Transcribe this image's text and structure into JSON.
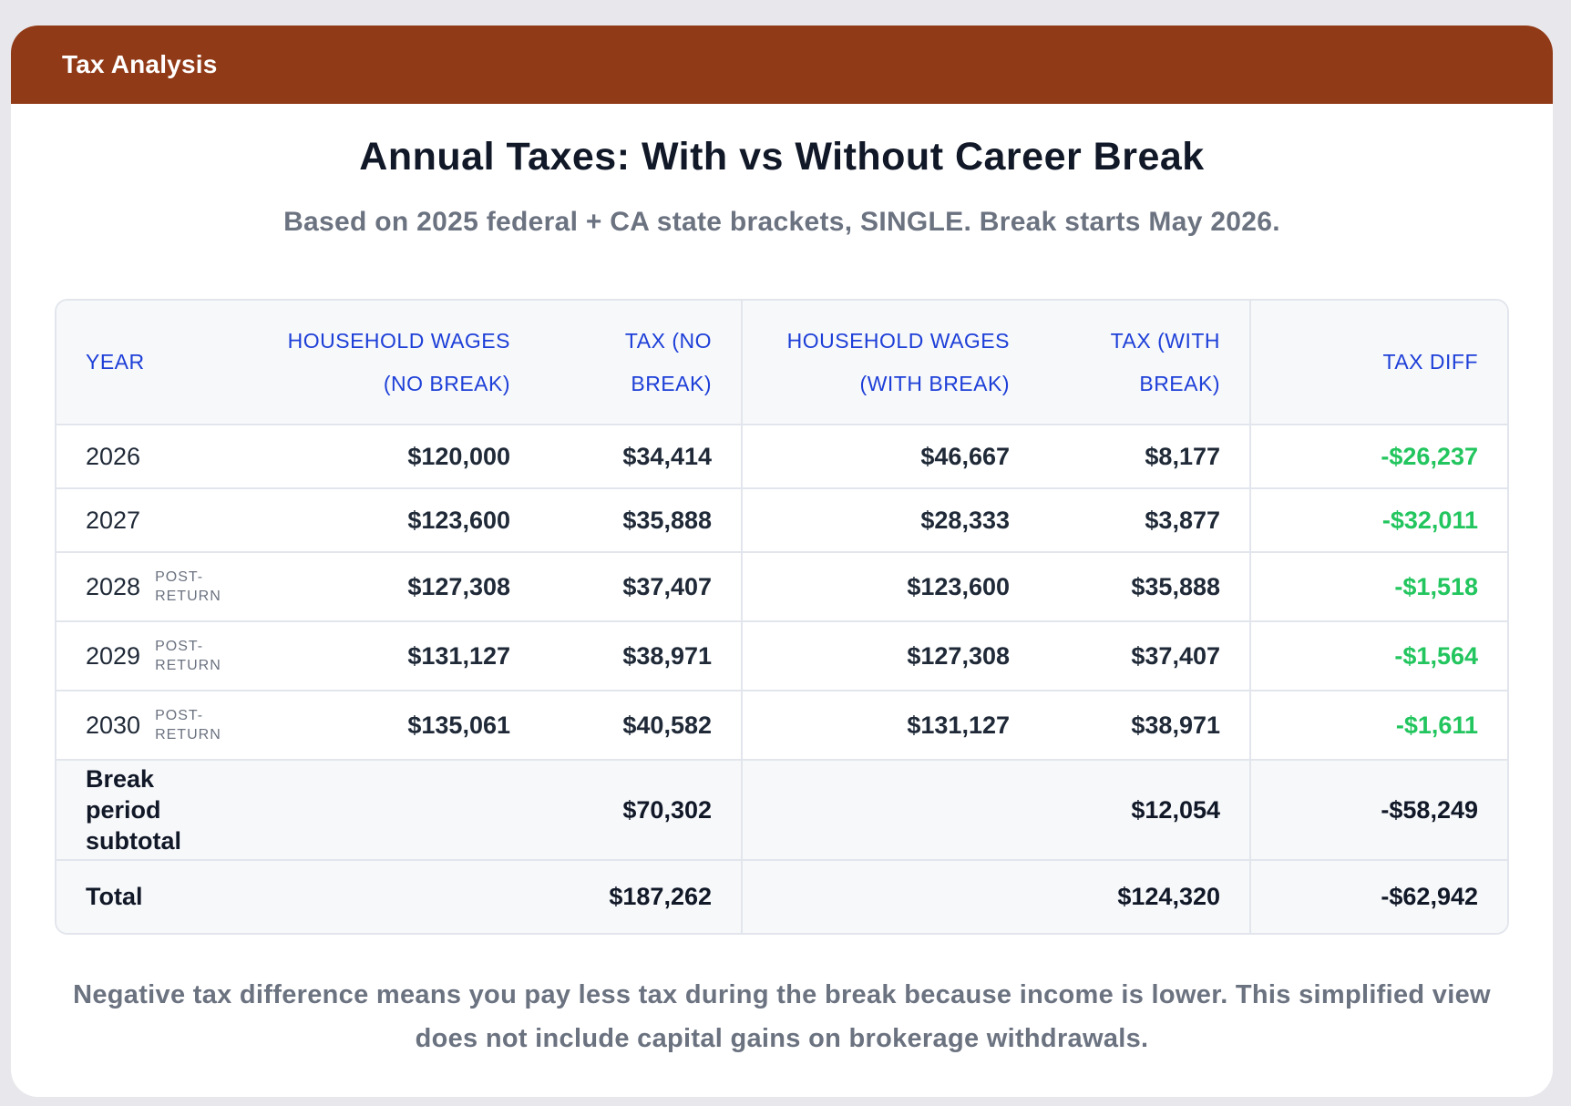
{
  "header": {
    "title": "Tax Analysis",
    "color": "#913a17"
  },
  "title": "Annual Taxes: With vs Without Career Break",
  "subtitle": "Based on 2025 federal + CA state brackets, SINGLE. Break starts May 2026.",
  "table": {
    "columns": {
      "year": "YEAR",
      "wages_no_break": "HOUSEHOLD WAGES (NO BREAK)",
      "tax_no_break": "TAX (NO BREAK)",
      "wages_with_break": "HOUSEHOLD WAGES (WITH BREAK)",
      "tax_with_break": "TAX (WITH BREAK)",
      "tax_diff": "TAX DIFF"
    },
    "rows": [
      {
        "year": "2026",
        "tag": "",
        "wages_no_break": "$120,000",
        "tax_no_break": "$34,414",
        "wages_with_break": "$46,667",
        "tax_with_break": "$8,177",
        "tax_diff": "-$26,237"
      },
      {
        "year": "2027",
        "tag": "",
        "wages_no_break": "$123,600",
        "tax_no_break": "$35,888",
        "wages_with_break": "$28,333",
        "tax_with_break": "$3,877",
        "tax_diff": "-$32,011"
      },
      {
        "year": "2028",
        "tag": "POST-RETURN",
        "wages_no_break": "$127,308",
        "tax_no_break": "$37,407",
        "wages_with_break": "$123,600",
        "tax_with_break": "$35,888",
        "tax_diff": "-$1,518"
      },
      {
        "year": "2029",
        "tag": "POST-RETURN",
        "wages_no_break": "$131,127",
        "tax_no_break": "$38,971",
        "wages_with_break": "$127,308",
        "tax_with_break": "$37,407",
        "tax_diff": "-$1,564"
      },
      {
        "year": "2030",
        "tag": "POST-RETURN",
        "wages_no_break": "$135,061",
        "tax_no_break": "$40,582",
        "wages_with_break": "$131,127",
        "tax_with_break": "$38,971",
        "tax_diff": "-$1,611"
      }
    ],
    "subtotal": {
      "label": "Break period subtotal",
      "tax_no_break": "$70,302",
      "tax_with_break": "$12,054",
      "tax_diff": "-$58,249"
    },
    "total": {
      "label": "Total",
      "tax_no_break": "$187,262",
      "tax_with_break": "$124,320",
      "tax_diff": "-$62,942"
    },
    "colors": {
      "header_text": "#1d3fd8",
      "diff_text": "#22c55e"
    }
  },
  "footnote": "Negative tax difference means you pay less tax during the break because income is lower. This simplified view does not include capital gains on brokerage withdrawals."
}
